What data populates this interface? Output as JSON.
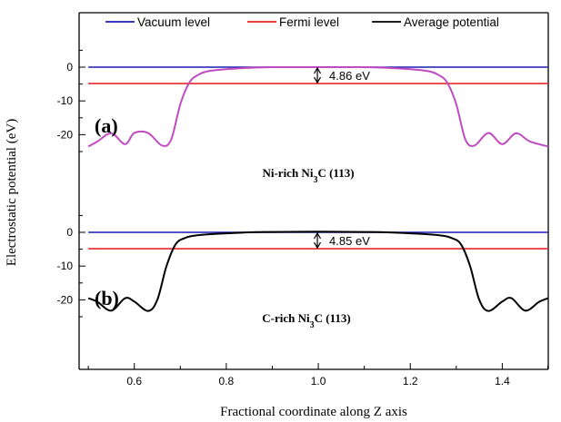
{
  "chart_data": {
    "type": "line",
    "xlabel": "Fractional coordinate along Z axis",
    "ylabel": "Electrostatic potential (eV)",
    "xlim": [
      0.48,
      1.5
    ],
    "x_ticks": [
      "0.6",
      "0.8",
      "1.0",
      "1.2",
      "1.4"
    ],
    "legend": {
      "placement": "top",
      "entries": [
        {
          "name": "Vacuum level",
          "color": "#1c1cb4"
        },
        {
          "name": "Fermi level",
          "color": "#e52828"
        },
        {
          "name": "Average potential",
          "color": "#000000"
        }
      ]
    },
    "panels": [
      {
        "label": "(a)",
        "material": "Ni-rich Ni",
        "material_sub": "3",
        "material_tail": "C (113)",
        "y_ticks": [
          "0",
          "-10",
          "-20"
        ],
        "vacuum_level": 0,
        "fermi_level": -4.86,
        "gap_label": "4.86 eV",
        "curve_color": "#c04bc0",
        "series": {
          "name": "Average potential",
          "x": [
            0.5,
            0.52,
            0.55,
            0.58,
            0.6,
            0.63,
            0.66,
            0.68,
            0.7,
            0.72,
            0.74,
            0.76,
            0.8,
            0.85,
            0.9,
            1.0,
            1.1,
            1.15,
            1.2,
            1.24,
            1.26,
            1.28,
            1.3,
            1.32,
            1.34,
            1.37,
            1.4,
            1.43,
            1.46,
            1.5
          ],
          "y": [
            -23.5,
            -22,
            -19.6,
            -22.8,
            -19.5,
            -19.5,
            -23.2,
            -21.5,
            -11,
            -4.5,
            -2.2,
            -1.2,
            -0.6,
            -0.2,
            0,
            0,
            0,
            -0.2,
            -0.6,
            -1.2,
            -2.2,
            -4.5,
            -11,
            -21.5,
            -23.2,
            -19.5,
            -22.8,
            -19.6,
            -22,
            -23.5
          ]
        }
      },
      {
        "label": "(b)",
        "material": "C-rich Ni",
        "material_sub": "3",
        "material_tail": "C (113)",
        "y_ticks": [
          "0",
          "-10",
          "-20"
        ],
        "vacuum_level": 0,
        "fermi_level": -4.85,
        "gap_label": "4.85 eV",
        "curve_color": "#000000",
        "series": {
          "name": "Average potential",
          "x": [
            0.5,
            0.52,
            0.55,
            0.58,
            0.6,
            0.63,
            0.65,
            0.67,
            0.69,
            0.71,
            0.73,
            0.76,
            0.8,
            0.85,
            0.9,
            1.0,
            1.1,
            1.15,
            1.2,
            1.24,
            1.27,
            1.29,
            1.31,
            1.33,
            1.35,
            1.37,
            1.4,
            1.42,
            1.45,
            1.48,
            1.5
          ],
          "y": [
            -19.5,
            -20.6,
            -23.2,
            -19.5,
            -20.5,
            -23.3,
            -20,
            -10,
            -3.5,
            -1.7,
            -1,
            -0.6,
            -0.3,
            0,
            0.1,
            0.2,
            0.1,
            0,
            -0.3,
            -0.6,
            -1,
            -1.7,
            -3.5,
            -10,
            -20,
            -23.3,
            -20.5,
            -19.5,
            -23.2,
            -20.6,
            -19.5
          ]
        }
      }
    ]
  }
}
